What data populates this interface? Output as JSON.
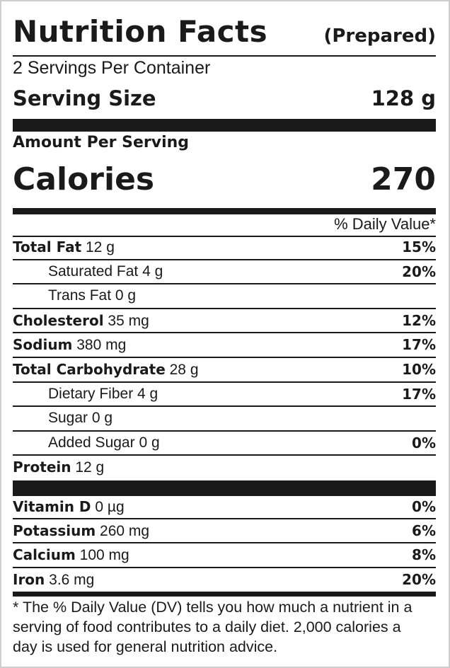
{
  "header": {
    "title": "Nutrition Facts",
    "subtitle": "(Prepared)"
  },
  "servings_per_container": "2 Servings Per Container",
  "serving_size": {
    "label": "Serving Size",
    "value": "128 g"
  },
  "amount_per_serving": "Amount Per Serving",
  "calories": {
    "label": "Calories",
    "value": "270"
  },
  "daily_value_header": "% Daily Value*",
  "nutrients": [
    {
      "name": "Total Fat",
      "amount": "12 g",
      "dv": "15%"
    },
    {
      "name": "Saturated Fat",
      "amount": "4 g",
      "dv": "20%"
    },
    {
      "name": "Trans Fat",
      "amount": "0 g",
      "dv": ""
    },
    {
      "name": "Cholesterol",
      "amount": "35 mg",
      "dv": "12%"
    },
    {
      "name": "Sodium",
      "amount": "380 mg",
      "dv": "17%"
    },
    {
      "name": "Total Carbohydrate",
      "amount": "28 g",
      "dv": "10%"
    },
    {
      "name": "Dietary Fiber",
      "amount": "4 g",
      "dv": "17%"
    },
    {
      "name": "Sugar",
      "amount": "0 g",
      "dv": ""
    },
    {
      "name": "Added Sugar",
      "amount": "0 g",
      "dv": "0%"
    },
    {
      "name": "Protein",
      "amount": "12 g",
      "dv": ""
    }
  ],
  "vitamins": [
    {
      "name": "Vitamin D",
      "amount": "0 µg",
      "dv": "0%"
    },
    {
      "name": "Potassium",
      "amount": "260 mg",
      "dv": "6%"
    },
    {
      "name": "Calcium",
      "amount": "100 mg",
      "dv": "8%"
    },
    {
      "name": "Iron",
      "amount": "3.6 mg",
      "dv": "20%"
    }
  ],
  "footnote": "* The % Daily Value (DV) tells you how much a nutrient in a serving of food contributes to a daily diet. 2,000 calories a day is used for general nutrition advice."
}
